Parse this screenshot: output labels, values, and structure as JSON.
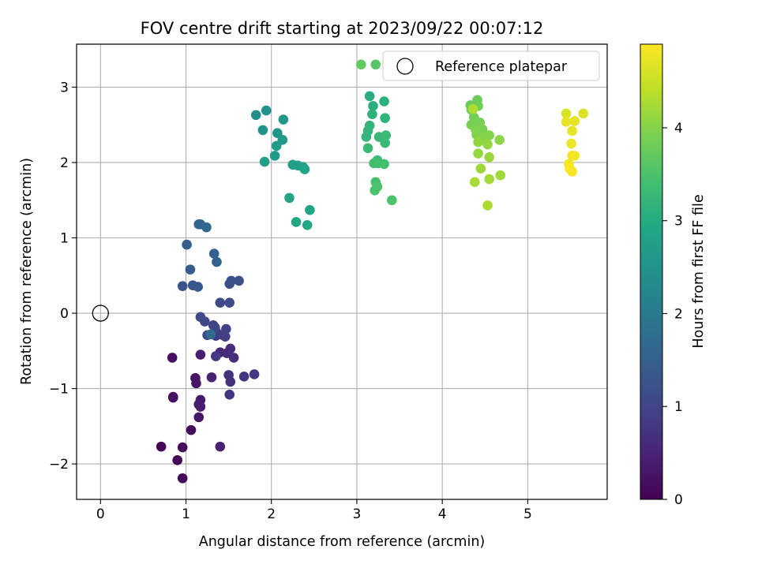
{
  "chart_data": {
    "type": "scatter",
    "title": "FOV centre drift starting at 2023/09/22 00:07:12",
    "xlabel": "Angular distance from reference (arcmin)",
    "ylabel": "Rotation from reference (arcmin)",
    "xlim": [
      -0.28,
      5.93
    ],
    "ylim": [
      -2.47,
      3.57
    ],
    "xticks": [
      0,
      1,
      2,
      3,
      4,
      5
    ],
    "yticks": [
      -2,
      -1,
      0,
      1,
      2,
      3
    ],
    "xtick_labels": [
      "0",
      "1",
      "2",
      "3",
      "4",
      "5"
    ],
    "ytick_labels": [
      "−2",
      "−1",
      "0",
      "1",
      "2",
      "3"
    ],
    "grid": true,
    "legend": {
      "placement": "top-right",
      "entries": [
        "Reference platepar"
      ]
    },
    "reference": {
      "x": 0,
      "y": 0
    },
    "colorbar": {
      "label": "Hours from first FF file",
      "range": [
        0,
        4.9
      ],
      "ticks": [
        0,
        1,
        2,
        3,
        4
      ],
      "tick_labels": [
        "0",
        "1",
        "2",
        "3",
        "4"
      ],
      "colormap": "viridis"
    },
    "points": [
      [
        0.71,
        -1.77,
        0.05
      ],
      [
        0.9,
        -1.95,
        0.08
      ],
      [
        0.96,
        -2.19,
        0.1
      ],
      [
        0.96,
        -1.78,
        0.12
      ],
      [
        1.06,
        -1.55,
        0.15
      ],
      [
        0.85,
        -1.12,
        0.18
      ],
      [
        0.84,
        -0.59,
        0.2
      ],
      [
        0.85,
        -1.11,
        0.22
      ],
      [
        1.11,
        -0.86,
        0.25
      ],
      [
        1.12,
        -0.93,
        0.28
      ],
      [
        1.15,
        -1.38,
        0.3
      ],
      [
        1.17,
        -1.15,
        0.33
      ],
      [
        1.15,
        -1.21,
        0.36
      ],
      [
        1.17,
        -1.24,
        0.38
      ],
      [
        1.17,
        -0.55,
        0.4
      ],
      [
        1.3,
        -0.85,
        0.45
      ],
      [
        1.4,
        -1.77,
        0.48
      ],
      [
        1.35,
        -0.57,
        0.52
      ],
      [
        1.4,
        -0.52,
        0.55
      ],
      [
        1.48,
        -0.53,
        0.58
      ],
      [
        1.52,
        -0.47,
        0.62
      ],
      [
        1.56,
        -0.59,
        0.65
      ],
      [
        1.5,
        -0.82,
        0.68
      ],
      [
        1.52,
        -0.91,
        0.72
      ],
      [
        1.51,
        -1.08,
        0.75
      ],
      [
        1.68,
        -0.84,
        0.78
      ],
      [
        1.8,
        -0.81,
        0.8
      ],
      [
        1.35,
        -0.57,
        0.82
      ],
      [
        1.35,
        -0.3,
        0.85
      ],
      [
        1.36,
        -0.26,
        0.88
      ],
      [
        1.43,
        -0.29,
        0.9
      ],
      [
        1.46,
        -0.31,
        0.92
      ],
      [
        1.47,
        -0.21,
        0.95
      ],
      [
        1.32,
        -0.16,
        0.97
      ],
      [
        1.34,
        -0.19,
        1.0
      ],
      [
        1.22,
        -0.11,
        1.02
      ],
      [
        1.25,
        -0.29,
        1.05
      ],
      [
        1.17,
        -0.05,
        1.08
      ],
      [
        1.4,
        0.14,
        1.1
      ],
      [
        1.51,
        0.14,
        1.12
      ],
      [
        1.51,
        0.39,
        1.15
      ],
      [
        1.53,
        0.43,
        1.18
      ],
      [
        1.62,
        0.43,
        1.2
      ],
      [
        0.96,
        0.36,
        1.25
      ],
      [
        1.08,
        0.37,
        1.3
      ],
      [
        1.14,
        0.35,
        1.35
      ],
      [
        1.05,
        0.58,
        1.4
      ],
      [
        1.01,
        0.91,
        1.45
      ],
      [
        1.33,
        0.79,
        1.5
      ],
      [
        1.36,
        0.68,
        1.55
      ],
      [
        1.15,
        1.18,
        1.6
      ],
      [
        1.17,
        1.18,
        1.62
      ],
      [
        1.24,
        1.14,
        1.65
      ],
      [
        1.29,
        -0.28,
        1.7
      ],
      [
        1.82,
        2.63,
        2.4
      ],
      [
        1.94,
        2.69,
        2.45
      ],
      [
        1.9,
        2.43,
        2.5
      ],
      [
        2.07,
        2.39,
        2.55
      ],
      [
        2.14,
        2.57,
        2.58
      ],
      [
        2.13,
        2.3,
        2.62
      ],
      [
        2.06,
        2.22,
        2.65
      ],
      [
        2.04,
        2.09,
        2.68
      ],
      [
        1.92,
        2.01,
        2.72
      ],
      [
        2.25,
        1.97,
        2.75
      ],
      [
        2.31,
        1.96,
        2.78
      ],
      [
        2.37,
        1.94,
        2.8
      ],
      [
        2.39,
        1.91,
        2.82
      ],
      [
        2.21,
        1.53,
        2.85
      ],
      [
        2.45,
        1.37,
        2.88
      ],
      [
        2.29,
        1.21,
        2.92
      ],
      [
        2.42,
        1.17,
        2.95
      ],
      [
        3.22,
        3.3,
        3.6
      ],
      [
        3.05,
        3.3,
        3.7
      ],
      [
        3.15,
        2.88,
        3.05
      ],
      [
        3.19,
        2.75,
        3.08
      ],
      [
        3.32,
        2.81,
        3.1
      ],
      [
        3.18,
        2.64,
        3.12
      ],
      [
        3.33,
        2.59,
        3.15
      ],
      [
        3.15,
        2.49,
        3.18
      ],
      [
        3.13,
        2.42,
        3.2
      ],
      [
        3.11,
        2.34,
        3.22
      ],
      [
        3.26,
        2.34,
        3.25
      ],
      [
        3.33,
        2.26,
        3.28
      ],
      [
        3.34,
        2.36,
        3.3
      ],
      [
        3.13,
        2.19,
        3.32
      ],
      [
        3.24,
        2.03,
        3.35
      ],
      [
        3.2,
        1.99,
        3.38
      ],
      [
        3.25,
        1.99,
        3.4
      ],
      [
        3.32,
        1.98,
        3.42
      ],
      [
        3.22,
        1.74,
        3.45
      ],
      [
        3.24,
        1.68,
        3.48
      ],
      [
        3.21,
        1.63,
        3.5
      ],
      [
        3.41,
        1.5,
        3.52
      ],
      [
        4.33,
        2.76,
        3.75
      ],
      [
        4.41,
        2.83,
        3.78
      ],
      [
        4.34,
        2.7,
        3.8
      ],
      [
        4.42,
        2.75,
        3.82
      ],
      [
        4.37,
        2.6,
        3.85
      ],
      [
        4.34,
        2.5,
        3.88
      ],
      [
        4.44,
        2.53,
        3.9
      ],
      [
        4.47,
        2.44,
        3.92
      ],
      [
        4.39,
        2.44,
        3.95
      ],
      [
        4.4,
        2.37,
        3.97
      ],
      [
        4.55,
        2.36,
        4.0
      ],
      [
        4.47,
        2.32,
        4.02
      ],
      [
        4.67,
        2.3,
        4.05
      ],
      [
        4.42,
        2.27,
        4.08
      ],
      [
        4.53,
        2.24,
        4.1
      ],
      [
        4.42,
        2.12,
        4.12
      ],
      [
        4.55,
        2.07,
        4.15
      ],
      [
        4.45,
        1.92,
        4.18
      ],
      [
        4.68,
        1.83,
        4.2
      ],
      [
        4.55,
        1.78,
        4.22
      ],
      [
        4.38,
        1.74,
        4.25
      ],
      [
        4.53,
        1.43,
        4.28
      ],
      [
        4.36,
        2.71,
        4.3
      ],
      [
        5.45,
        2.65,
        4.6
      ],
      [
        5.65,
        2.65,
        4.65
      ],
      [
        5.55,
        2.55,
        4.7
      ],
      [
        5.45,
        2.54,
        4.75
      ],
      [
        5.52,
        2.42,
        4.72
      ],
      [
        5.51,
        2.25,
        4.78
      ],
      [
        5.52,
        2.09,
        4.8
      ],
      [
        5.55,
        2.09,
        4.82
      ],
      [
        5.48,
        1.98,
        4.84
      ],
      [
        5.52,
        1.88,
        4.86
      ],
      [
        5.49,
        1.92,
        4.88
      ]
    ]
  }
}
